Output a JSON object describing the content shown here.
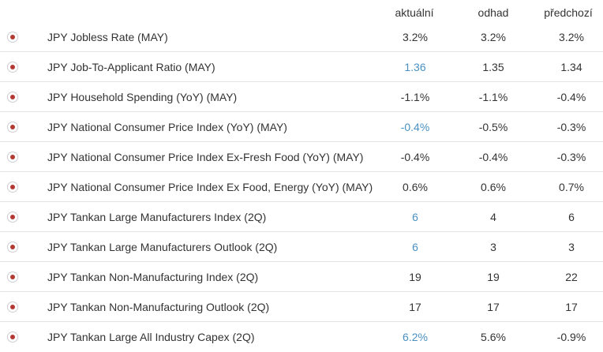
{
  "headers": {
    "actual": "aktuální",
    "estimate": "odhad",
    "previous": "předchozí"
  },
  "colors": {
    "highlight": "#4a90c0",
    "dot": "#b23a32",
    "text": "#333333"
  },
  "rows": [
    {
      "name": "JPY Jobless Rate (MAY)",
      "actual": "3.2%",
      "estimate": "3.2%",
      "previous": "3.2%",
      "actual_highlight": false
    },
    {
      "name": "JPY Job-To-Applicant Ratio (MAY)",
      "actual": "1.36",
      "estimate": "1.35",
      "previous": "1.34",
      "actual_highlight": true
    },
    {
      "name": "JPY Household Spending (YoY) (MAY)",
      "actual": "-1.1%",
      "estimate": "-1.1%",
      "previous": "-0.4%",
      "actual_highlight": false
    },
    {
      "name": "JPY National Consumer Price Index (YoY) (MAY)",
      "actual": "-0.4%",
      "estimate": "-0.5%",
      "previous": "-0.3%",
      "actual_highlight": true
    },
    {
      "name": "JPY National Consumer Price Index Ex-Fresh Food (YoY) (MAY)",
      "actual": "-0.4%",
      "estimate": "-0.4%",
      "previous": "-0.3%",
      "actual_highlight": false
    },
    {
      "name": "JPY National Consumer Price Index Ex Food, Energy (YoY) (MAY)",
      "actual": "0.6%",
      "estimate": "0.6%",
      "previous": "0.7%",
      "actual_highlight": false
    },
    {
      "name": "JPY Tankan Large Manufacturers Index (2Q)",
      "actual": "6",
      "estimate": "4",
      "previous": "6",
      "actual_highlight": true
    },
    {
      "name": "JPY Tankan Large Manufacturers Outlook (2Q)",
      "actual": "6",
      "estimate": "3",
      "previous": "3",
      "actual_highlight": true
    },
    {
      "name": "JPY Tankan Non-Manufacturing Index (2Q)",
      "actual": "19",
      "estimate": "19",
      "previous": "22",
      "actual_highlight": false
    },
    {
      "name": "JPY Tankan Non-Manufacturing Outlook (2Q)",
      "actual": "17",
      "estimate": "17",
      "previous": "17",
      "actual_highlight": false
    },
    {
      "name": "JPY Tankan Large All Industry Capex (2Q)",
      "actual": "6.2%",
      "estimate": "5.6%",
      "previous": "-0.9%",
      "actual_highlight": true
    }
  ]
}
